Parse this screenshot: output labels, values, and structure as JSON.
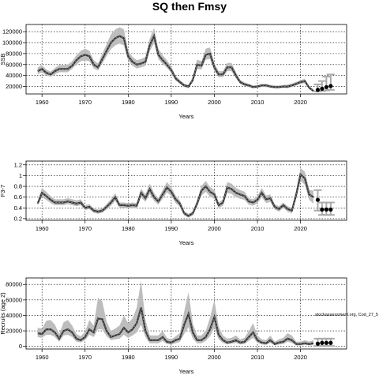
{
  "chart_data": {
    "title": "SQ then Fmsy",
    "annotation": "stockassessment.org, Cod_27_5",
    "panels": [
      {
        "type": "line",
        "xlabel": "Years",
        "ylabel": "SSB",
        "xlim": [
          1956.3,
          2030.7
        ],
        "ylim": [
          6500,
          133000
        ],
        "xticks": [
          1960,
          1970,
          1980,
          1990,
          2000,
          2010,
          2020
        ],
        "yticks": [
          20000,
          40000,
          60000,
          80000,
          100000,
          120000
        ],
        "grid": true,
        "history": {
          "x": [
            1959,
            1960,
            1961,
            1962,
            1963,
            1964,
            1965,
            1966,
            1967,
            1968,
            1969,
            1970,
            1971,
            1972,
            1973,
            1974,
            1975,
            1976,
            1977,
            1978,
            1979,
            1980,
            1981,
            1982,
            1983,
            1984,
            1985,
            1986,
            1987,
            1988,
            1989,
            1990,
            1991,
            1992,
            1993,
            1994,
            1995,
            1996,
            1997,
            1998,
            1999,
            2000,
            2001,
            2002,
            2003,
            2004,
            2005,
            2006,
            2007,
            2008,
            2009,
            2010,
            2011,
            2012,
            2013,
            2014,
            2015,
            2016,
            2017,
            2018,
            2019,
            2020,
            2021,
            2022,
            2023
          ],
          "y": [
            48000,
            52000,
            45000,
            42000,
            48000,
            52000,
            52000,
            52000,
            58000,
            68000,
            75000,
            78000,
            75000,
            60000,
            55000,
            70000,
            85000,
            100000,
            108000,
            112000,
            108000,
            75000,
            65000,
            60000,
            62000,
            65000,
            95000,
            112000,
            78000,
            68000,
            60000,
            50000,
            35000,
            28000,
            22000,
            20000,
            32000,
            60000,
            58000,
            78000,
            80000,
            55000,
            42000,
            42000,
            55000,
            55000,
            40000,
            28000,
            24000,
            22000,
            19000,
            20000,
            22000,
            22000,
            20000,
            19000,
            19000,
            20000,
            20000,
            22000,
            25000,
            28000,
            30000,
            18000,
            12000
          ],
          "lower": [
            42000,
            46000,
            40000,
            38000,
            42000,
            46000,
            46000,
            46000,
            52000,
            60000,
            66000,
            68000,
            66000,
            53000,
            49000,
            62000,
            75000,
            88000,
            95000,
            98000,
            95000,
            67000,
            58000,
            53000,
            55000,
            58000,
            84000,
            99000,
            70000,
            61000,
            54000,
            45000,
            31000,
            25000,
            19000,
            17000,
            28000,
            52000,
            51000,
            69000,
            70000,
            48000,
            37000,
            37000,
            48000,
            48000,
            35000,
            25000,
            21000,
            19000,
            16500,
            17500,
            19000,
            19000,
            17500,
            16500,
            16500,
            17500,
            17000,
            19000,
            22000,
            24500,
            26000,
            15500,
            10000
          ],
          "upper": [
            55000,
            59000,
            51000,
            47000,
            54000,
            59000,
            59000,
            60000,
            66000,
            77000,
            85000,
            89000,
            85000,
            68000,
            62000,
            80000,
            97000,
            115000,
            124000,
            128000,
            124000,
            85000,
            74000,
            68000,
            70000,
            74000,
            107000,
            127000,
            89000,
            77000,
            68000,
            56000,
            40000,
            32000,
            25500,
            23500,
            37000,
            69000,
            66000,
            89000,
            91000,
            63000,
            48000,
            48000,
            63000,
            63000,
            46000,
            32000,
            27500,
            25000,
            22000,
            23000,
            25000,
            25000,
            23000,
            22000,
            22000,
            23000,
            23500,
            25500,
            28500,
            32000,
            34000,
            21000,
            14500
          ]
        },
        "forecast": {
          "x": [
            2024,
            2025,
            2026,
            2027
          ],
          "median": [
            14000,
            16000,
            19000,
            21000
          ],
          "lower": [
            11000,
            12000,
            13000,
            14000
          ],
          "upper": [
            24000,
            30000,
            38000,
            42000
          ]
        }
      },
      {
        "type": "line",
        "xlabel": "Years",
        "ylabel": "F3-7",
        "xlim": [
          1956.3,
          2030.7
        ],
        "ylim": [
          0.17,
          1.27
        ],
        "xticks": [
          1960,
          1970,
          1980,
          1990,
          2000,
          2010,
          2020
        ],
        "yticks": [
          0.2,
          0.4,
          0.6,
          0.8,
          1.0,
          1.2
        ],
        "grid": true,
        "history": {
          "x": [
            1959,
            1960,
            1961,
            1962,
            1963,
            1964,
            1965,
            1966,
            1967,
            1968,
            1969,
            1970,
            1971,
            1972,
            1973,
            1974,
            1975,
            1976,
            1977,
            1978,
            1979,
            1980,
            1981,
            1982,
            1983,
            1984,
            1985,
            1986,
            1987,
            1988,
            1989,
            1990,
            1991,
            1992,
            1993,
            1994,
            1995,
            1996,
            1997,
            1998,
            1999,
            2000,
            2001,
            2002,
            2003,
            2004,
            2005,
            2006,
            2007,
            2008,
            2009,
            2010,
            2011,
            2012,
            2013,
            2014,
            2015,
            2016,
            2017,
            2018,
            2019,
            2020,
            2021,
            2022,
            2023
          ],
          "y": [
            0.48,
            0.68,
            0.62,
            0.55,
            0.5,
            0.5,
            0.5,
            0.52,
            0.5,
            0.48,
            0.5,
            0.4,
            0.42,
            0.35,
            0.33,
            0.35,
            0.42,
            0.5,
            0.6,
            0.45,
            0.45,
            0.44,
            0.45,
            0.44,
            0.68,
            0.58,
            0.75,
            0.6,
            0.52,
            0.65,
            0.78,
            0.7,
            0.56,
            0.48,
            0.3,
            0.25,
            0.3,
            0.48,
            0.72,
            0.8,
            0.7,
            0.65,
            0.45,
            0.5,
            0.78,
            0.75,
            0.68,
            0.65,
            0.62,
            0.52,
            0.5,
            0.55,
            0.68,
            0.56,
            0.58,
            0.42,
            0.38,
            0.45,
            0.38,
            0.35,
            0.65,
            1.02,
            0.95,
            0.65,
            0.6
          ],
          "lower": [
            0.45,
            0.6,
            0.55,
            0.49,
            0.45,
            0.45,
            0.45,
            0.47,
            0.45,
            0.43,
            0.45,
            0.36,
            0.38,
            0.31,
            0.29,
            0.31,
            0.37,
            0.44,
            0.53,
            0.4,
            0.4,
            0.39,
            0.4,
            0.39,
            0.6,
            0.51,
            0.66,
            0.53,
            0.46,
            0.57,
            0.69,
            0.62,
            0.49,
            0.42,
            0.26,
            0.22,
            0.26,
            0.42,
            0.63,
            0.7,
            0.61,
            0.57,
            0.4,
            0.44,
            0.68,
            0.66,
            0.6,
            0.57,
            0.55,
            0.46,
            0.44,
            0.49,
            0.6,
            0.49,
            0.51,
            0.37,
            0.33,
            0.4,
            0.33,
            0.3,
            0.57,
            0.9,
            0.83,
            0.55,
            0.48
          ],
          "upper": [
            0.52,
            0.77,
            0.7,
            0.62,
            0.56,
            0.56,
            0.56,
            0.58,
            0.56,
            0.54,
            0.56,
            0.45,
            0.47,
            0.39,
            0.37,
            0.39,
            0.47,
            0.56,
            0.67,
            0.5,
            0.5,
            0.49,
            0.5,
            0.49,
            0.76,
            0.65,
            0.85,
            0.68,
            0.58,
            0.73,
            0.88,
            0.79,
            0.63,
            0.54,
            0.34,
            0.29,
            0.34,
            0.54,
            0.81,
            0.9,
            0.79,
            0.73,
            0.5,
            0.56,
            0.88,
            0.85,
            0.77,
            0.73,
            0.7,
            0.58,
            0.56,
            0.62,
            0.77,
            0.63,
            0.65,
            0.47,
            0.43,
            0.5,
            0.43,
            0.4,
            0.73,
            1.14,
            1.07,
            0.74,
            0.72
          ]
        },
        "forecast": {
          "x": [
            2024,
            2025,
            2026,
            2027
          ],
          "median": [
            0.55,
            0.37,
            0.37,
            0.37
          ],
          "lower": [
            0.35,
            0.27,
            0.27,
            0.27
          ],
          "upper": [
            0.73,
            0.5,
            0.5,
            0.5
          ]
        }
      },
      {
        "type": "line",
        "xlabel": "Years",
        "ylabel": "Recruits (age 2)",
        "xlim": [
          1956.3,
          2030.7
        ],
        "ylim": [
          -3400,
          88400
        ],
        "xticks": [
          1960,
          1970,
          1980,
          1990,
          2000,
          2010,
          2020
        ],
        "yticks": [
          0,
          20000,
          40000,
          60000,
          80000
        ],
        "grid": true,
        "history": {
          "x": [
            1959,
            1960,
            1961,
            1962,
            1963,
            1964,
            1965,
            1966,
            1967,
            1968,
            1969,
            1970,
            1971,
            1972,
            1973,
            1974,
            1975,
            1976,
            1977,
            1978,
            1979,
            1980,
            1981,
            1982,
            1983,
            1984,
            1985,
            1986,
            1987,
            1988,
            1989,
            1990,
            1991,
            1992,
            1993,
            1994,
            1995,
            1996,
            1997,
            1998,
            1999,
            2000,
            2001,
            2002,
            2003,
            2004,
            2005,
            2006,
            2007,
            2008,
            2009,
            2010,
            2011,
            2012,
            2013,
            2014,
            2015,
            2016,
            2017,
            2018,
            2019,
            2020,
            2021,
            2022,
            2023
          ],
          "y": [
            17000,
            16000,
            22000,
            22000,
            18000,
            10000,
            20000,
            22000,
            18000,
            10000,
            8000,
            12000,
            22000,
            18000,
            36000,
            35000,
            20000,
            12000,
            14000,
            16000,
            24000,
            18000,
            22000,
            30000,
            50000,
            20000,
            8000,
            8000,
            8000,
            12000,
            6000,
            5000,
            8000,
            10000,
            28000,
            42000,
            18000,
            8000,
            8000,
            12000,
            22000,
            38000,
            15000,
            8000,
            5000,
            6000,
            8000,
            5000,
            6000,
            12000,
            18000,
            8000,
            5000,
            4000,
            8000,
            3000,
            5000,
            6000,
            10000,
            8000,
            3000,
            3000,
            4000,
            3000,
            4000
          ],
          "lower": [
            12000,
            11000,
            15000,
            15000,
            12000,
            6000,
            14000,
            15000,
            12000,
            6000,
            5000,
            8000,
            15000,
            12000,
            22000,
            22000,
            13000,
            8000,
            9000,
            10000,
            15000,
            11000,
            14000,
            18000,
            28000,
            12000,
            4000,
            4000,
            4000,
            7000,
            3000,
            2500,
            4000,
            6000,
            16000,
            25000,
            10000,
            4000,
            4000,
            7000,
            13000,
            24000,
            9000,
            4500,
            2500,
            3500,
            4500,
            2500,
            3000,
            7000,
            11000,
            4500,
            2500,
            2000,
            4500,
            1200,
            2500,
            3000,
            6000,
            4500,
            1200,
            1200,
            1800,
            1200,
            1500
          ],
          "upper": [
            24000,
            23000,
            33000,
            34000,
            28000,
            16000,
            31000,
            34000,
            27000,
            16000,
            13000,
            19000,
            34000,
            27000,
            63000,
            58000,
            32000,
            20000,
            23000,
            27000,
            40000,
            30000,
            36000,
            50000,
            85000,
            34000,
            14000,
            14000,
            14000,
            20000,
            11000,
            9000,
            13000,
            17000,
            45000,
            70000,
            30000,
            14000,
            14000,
            20000,
            37000,
            60000,
            26000,
            14000,
            10000,
            11000,
            14000,
            9000,
            11000,
            20000,
            30000,
            14000,
            9000,
            8000,
            14000,
            6000,
            9000,
            11000,
            17000,
            14000,
            6000,
            6000,
            8000,
            6000,
            8000
          ]
        },
        "forecast": {
          "x": [
            2024,
            2025,
            2026,
            2027
          ],
          "median": [
            3500,
            4500,
            4500,
            4500
          ],
          "lower": [
            500,
            500,
            500,
            500
          ],
          "upper": [
            10000,
            10000,
            10000,
            10000
          ]
        }
      }
    ]
  }
}
